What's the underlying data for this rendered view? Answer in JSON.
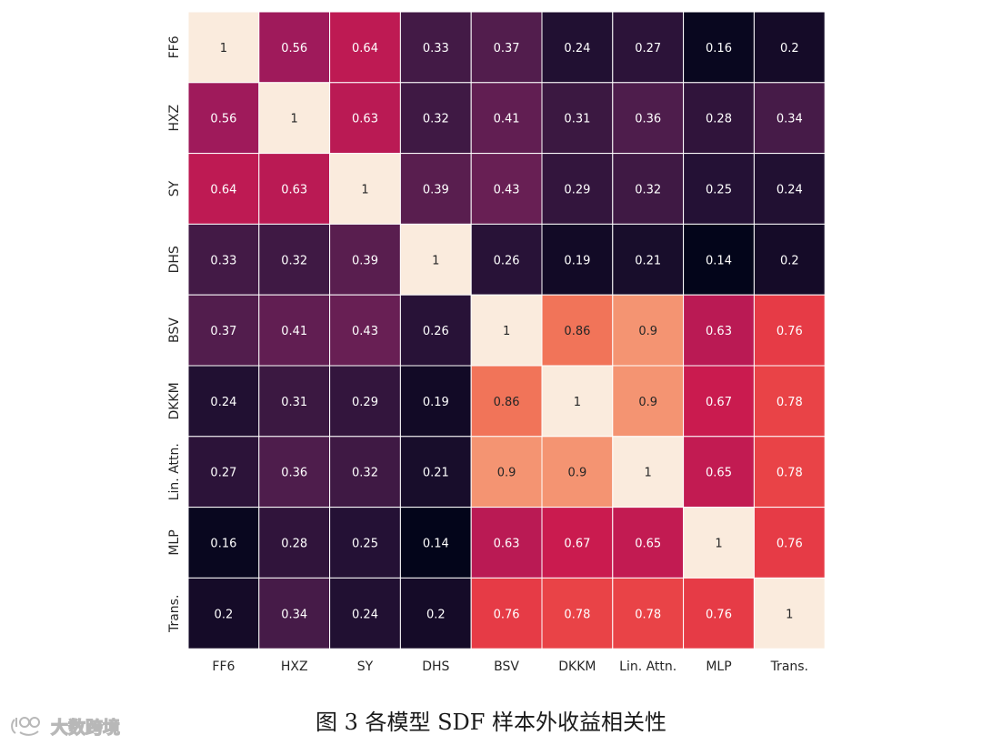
{
  "chart_data": {
    "type": "heatmap",
    "x_labels": [
      "FF6",
      "HXZ",
      "SY",
      "DHS",
      "BSV",
      "DKKM",
      "Lin. Attn.",
      "MLP",
      "Trans."
    ],
    "y_labels": [
      "FF6",
      "HXZ",
      "SY",
      "DHS",
      "BSV",
      "DKKM",
      "Lin. Attn.",
      "MLP",
      "Trans."
    ],
    "values": [
      [
        1,
        0.56,
        0.64,
        0.33,
        0.37,
        0.24,
        0.27,
        0.16,
        0.2
      ],
      [
        0.56,
        1,
        0.63,
        0.32,
        0.41,
        0.31,
        0.36,
        0.28,
        0.34
      ],
      [
        0.64,
        0.63,
        1,
        0.39,
        0.43,
        0.29,
        0.32,
        0.25,
        0.24
      ],
      [
        0.33,
        0.32,
        0.39,
        1,
        0.26,
        0.19,
        0.21,
        0.14,
        0.2
      ],
      [
        0.37,
        0.41,
        0.43,
        0.26,
        1,
        0.86,
        0.9,
        0.63,
        0.76
      ],
      [
        0.24,
        0.31,
        0.29,
        0.19,
        0.86,
        1,
        0.9,
        0.67,
        0.78
      ],
      [
        0.27,
        0.36,
        0.32,
        0.21,
        0.9,
        0.9,
        1,
        0.65,
        0.78
      ],
      [
        0.16,
        0.28,
        0.25,
        0.14,
        0.63,
        0.67,
        0.65,
        1,
        0.76
      ],
      [
        0.2,
        0.34,
        0.24,
        0.2,
        0.76,
        0.78,
        0.78,
        0.76,
        1
      ]
    ],
    "colormap": "rocket",
    "vmin": 0.14,
    "vmax": 1,
    "annotated": true,
    "grid": true
  },
  "caption": "图 3 各模型 SDF 样本外收益相关性",
  "watermark": "大数跨境"
}
